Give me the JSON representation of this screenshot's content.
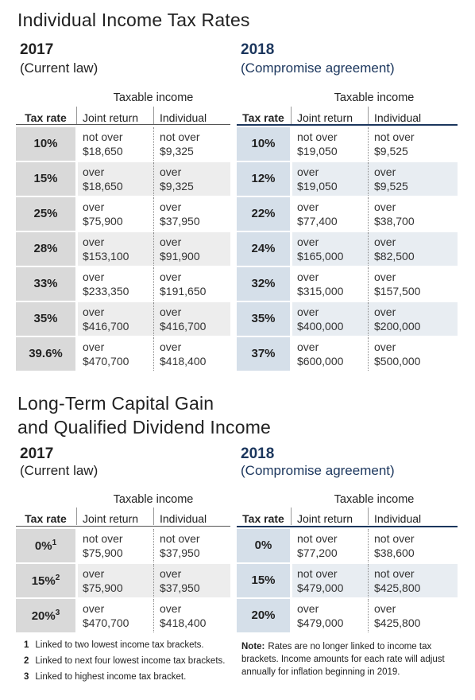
{
  "sections": [
    {
      "title_lines": [
        "Individual Income Tax Rates"
      ],
      "panels": [
        {
          "year": "2017",
          "subtitle": "(Current law)",
          "group_header": "Taxable income",
          "columns": [
            "Tax rate",
            "Joint return",
            "Individual"
          ],
          "rows": [
            {
              "rate": "10%",
              "joint": [
                "not over",
                "$18,650"
              ],
              "individual": [
                "not over",
                "$9,325"
              ]
            },
            {
              "rate": "15%",
              "joint": [
                "over",
                "$18,650"
              ],
              "individual": [
                "over",
                "$9,325"
              ]
            },
            {
              "rate": "25%",
              "joint": [
                "over",
                "$75,900"
              ],
              "individual": [
                "over",
                "$37,950"
              ]
            },
            {
              "rate": "28%",
              "joint": [
                "over",
                "$153,100"
              ],
              "individual": [
                "over",
                "$91,900"
              ]
            },
            {
              "rate": "33%",
              "joint": [
                "over",
                "$233,350"
              ],
              "individual": [
                "over",
                "$191,650"
              ]
            },
            {
              "rate": "35%",
              "joint": [
                "over",
                "$416,700"
              ],
              "individual": [
                "over",
                "$416,700"
              ]
            },
            {
              "rate": "39.6%",
              "joint": [
                "over",
                "$470,700"
              ],
              "individual": [
                "over",
                "$418,400"
              ]
            }
          ]
        },
        {
          "year": "2018",
          "subtitle": "(Compromise agreement)",
          "group_header": "Taxable income",
          "columns": [
            "Tax rate",
            "Joint return",
            "Individual"
          ],
          "rows": [
            {
              "rate": "10%",
              "joint": [
                "not over",
                "$19,050"
              ],
              "individual": [
                "not over",
                "$9,525"
              ]
            },
            {
              "rate": "12%",
              "joint": [
                "over",
                "$19,050"
              ],
              "individual": [
                "over",
                "$9,525"
              ]
            },
            {
              "rate": "22%",
              "joint": [
                "over",
                "$77,400"
              ],
              "individual": [
                "over",
                "$38,700"
              ]
            },
            {
              "rate": "24%",
              "joint": [
                "over",
                "$165,000"
              ],
              "individual": [
                "over",
                "$82,500"
              ]
            },
            {
              "rate": "32%",
              "joint": [
                "over",
                "$315,000"
              ],
              "individual": [
                "over",
                "$157,500"
              ]
            },
            {
              "rate": "35%",
              "joint": [
                "over",
                "$400,000"
              ],
              "individual": [
                "over",
                "$200,000"
              ]
            },
            {
              "rate": "37%",
              "joint": [
                "over",
                "$600,000"
              ],
              "individual": [
                "over",
                "$500,000"
              ]
            }
          ]
        }
      ]
    },
    {
      "title_lines": [
        "Long-Term Capital Gain",
        "and Qualified Dividend Income"
      ],
      "panels": [
        {
          "year": "2017",
          "subtitle": "(Current law)",
          "group_header": "Taxable income",
          "columns": [
            "Tax rate",
            "Joint return",
            "Individual"
          ],
          "rows": [
            {
              "rate": "0%",
              "sup": "1",
              "joint": [
                "not over",
                "$75,900"
              ],
              "individual": [
                "not over",
                "$37,950"
              ]
            },
            {
              "rate": "15%",
              "sup": "2",
              "joint": [
                "over",
                "$75,900"
              ],
              "individual": [
                "over",
                "$37,950"
              ]
            },
            {
              "rate": "20%",
              "sup": "3",
              "joint": [
                "over",
                "$470,700"
              ],
              "individual": [
                "over",
                "$418,400"
              ]
            }
          ]
        },
        {
          "year": "2018",
          "subtitle": "(Compromise agreement)",
          "group_header": "Taxable income",
          "columns": [
            "Tax rate",
            "Joint return",
            "Individual"
          ],
          "rows": [
            {
              "rate": "0%",
              "joint": [
                "not over",
                "$77,200"
              ],
              "individual": [
                "not over",
                "$38,600"
              ]
            },
            {
              "rate": "15%",
              "joint": [
                "not over",
                "$479,000"
              ],
              "individual": [
                "not over",
                "$425,800"
              ]
            },
            {
              "rate": "20%",
              "joint": [
                "over",
                "$479,000"
              ],
              "individual": [
                "over",
                "$425,800"
              ]
            }
          ]
        }
      ]
    }
  ],
  "footnotes": [
    {
      "number": "1",
      "text": "Linked to two lowest income tax brackets."
    },
    {
      "number": "2",
      "text": "Linked to next four lowest income tax brackets."
    },
    {
      "number": "3",
      "text": "Linked to highest income tax bracket."
    }
  ],
  "note": {
    "label": "Note:",
    "text": "Rates are no longer linked to income tax brackets. Income amounts for each rate will adjust annually for inflation beginning in 2019."
  }
}
